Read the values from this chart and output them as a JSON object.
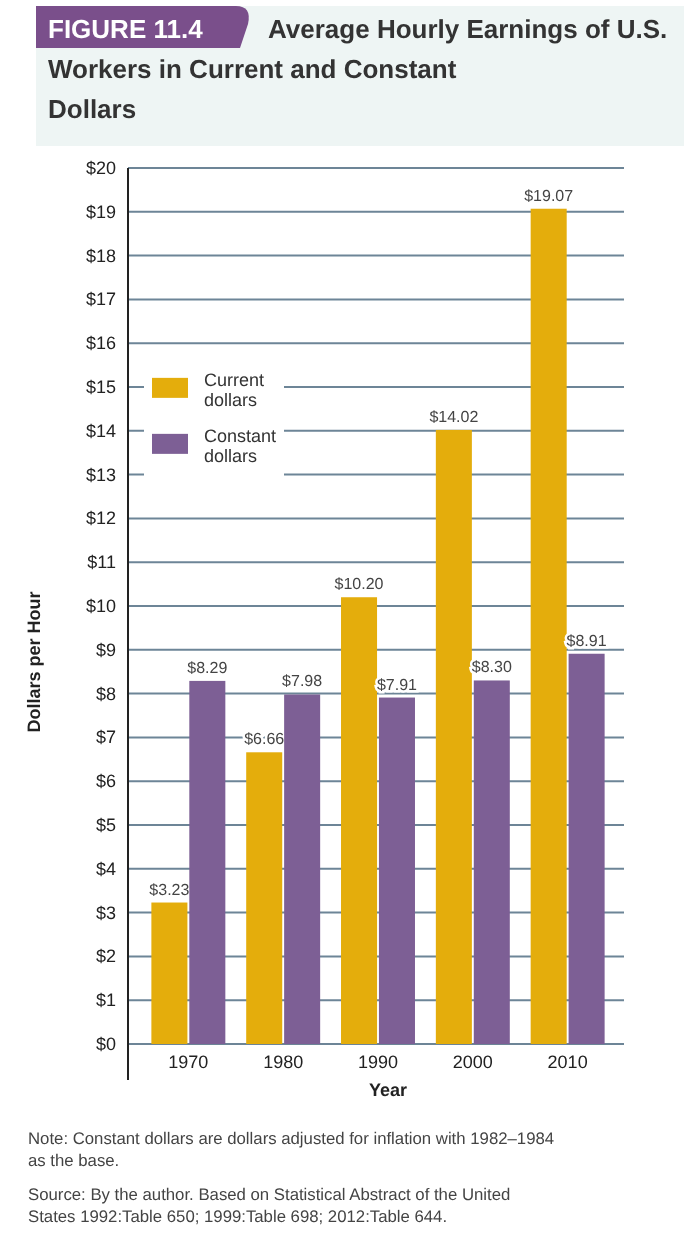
{
  "chart_data": {
    "type": "bar",
    "title": "Average Hourly Earnings of U.S. Workers in Current and Constant Dollars",
    "xlabel": "Year",
    "ylabel": "Dollars per Hour",
    "categories": [
      "1970",
      "1980",
      "1990",
      "2000",
      "2010"
    ],
    "series": [
      {
        "name": "Current dollars",
        "color": "#e4ad0c",
        "values": [
          3.23,
          6.66,
          10.2,
          14.02,
          19.07
        ],
        "value_labels": [
          "$3.23",
          "$6.66",
          "$10.20",
          "$14.02",
          "$19.07"
        ]
      },
      {
        "name": "Constant dollars",
        "color": "#7d5f95",
        "values": [
          8.29,
          7.98,
          7.91,
          8.3,
          8.91
        ],
        "value_labels": [
          "$8.29",
          "$7.98",
          "$7.91",
          "$8.30",
          "$8.91"
        ]
      }
    ],
    "ylim": [
      0,
      20
    ],
    "yticks": [
      {
        "value": 0,
        "label": "$0"
      },
      {
        "value": 1,
        "label": "$1"
      },
      {
        "value": 2,
        "label": "$2"
      },
      {
        "value": 3,
        "label": "$3"
      },
      {
        "value": 4,
        "label": "$4"
      },
      {
        "value": 5,
        "label": "$5"
      },
      {
        "value": 6,
        "label": "$6"
      },
      {
        "value": 7,
        "label": "$7"
      },
      {
        "value": 8,
        "label": "$8"
      },
      {
        "value": 9,
        "label": "$9"
      },
      {
        "value": 10,
        "label": "$10"
      },
      {
        "value": 11,
        "label": "$11"
      },
      {
        "value": 12,
        "label": "$12"
      },
      {
        "value": 13,
        "label": "$13"
      },
      {
        "value": 14,
        "label": "$14"
      },
      {
        "value": 15,
        "label": "$15"
      },
      {
        "value": 16,
        "label": "$16"
      },
      {
        "value": 17,
        "label": "$17"
      },
      {
        "value": 18,
        "label": "$18"
      },
      {
        "value": 19,
        "label": "$19"
      },
      {
        "value": 20,
        "label": "$20"
      }
    ],
    "grid": "y",
    "legend": "left",
    "annotations": [
      "FIGURE 11.4",
      "Note: Constant dollars are dollars adjusted for inflation with 1982–1984 as the base.",
      "Source: By the author. Based on Statistical Abstract of the United States 1992:Table 650; 1999:Table 698; 2012:Table 644."
    ]
  }
}
